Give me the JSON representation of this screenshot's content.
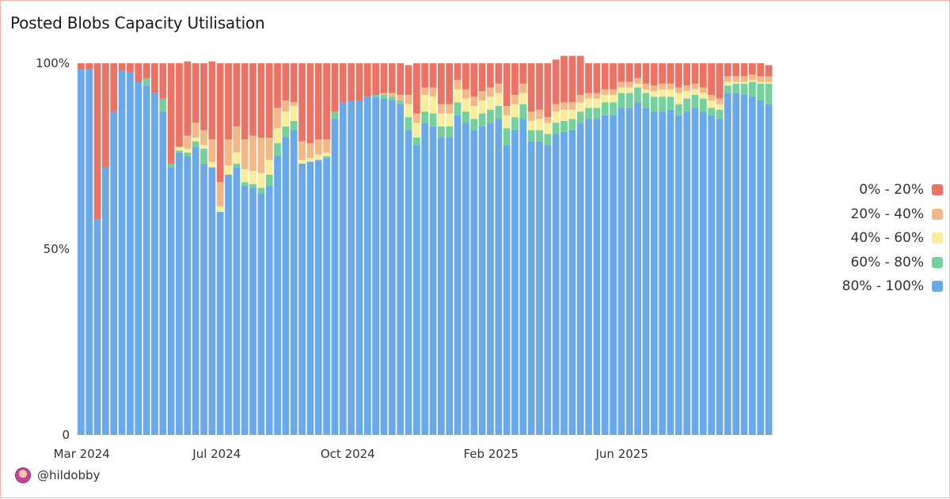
{
  "title": "Posted Blobs Capacity Utilisation",
  "footer": {
    "handle": "@hildobby",
    "avatar_icon": "avatar-icon"
  },
  "legend": [
    {
      "label": "0% - 20%",
      "color": "#ec7263"
    },
    {
      "label": "20% - 40%",
      "color": "#f4b886"
    },
    {
      "label": "40% - 60%",
      "color": "#f8ee99"
    },
    {
      "label": "60% - 80%",
      "color": "#74d19c"
    },
    {
      "label": "80% - 100%",
      "color": "#69a8ea"
    }
  ],
  "chart_data": {
    "type": "bar",
    "stacked": true,
    "title": "Posted Blobs Capacity Utilisation",
    "x_tick_labels": [
      "Mar 2024",
      "Jul 2024",
      "Oct 2024",
      "Feb 2025",
      "Jun 2025"
    ],
    "y_tick_labels": [
      "0",
      "50%",
      "100%"
    ],
    "ylim": [
      0,
      100
    ],
    "grid": false,
    "legend_position": "right",
    "series_order_bottom_to_top": [
      "80% - 100%",
      "60% - 80%",
      "40% - 60%",
      "20% - 40%",
      "0% - 20%"
    ],
    "series": [
      {
        "name": "80% - 100%",
        "color": "#69a8ea",
        "values": [
          98.5,
          98.5,
          58,
          72,
          87,
          98,
          97.5,
          95,
          94,
          92,
          87,
          72,
          76,
          75,
          77.5,
          73,
          72,
          60,
          70,
          72,
          67,
          66.5,
          65,
          67,
          75,
          80,
          82,
          73,
          73.5,
          74,
          74.5,
          85,
          89.5,
          90,
          90,
          91,
          91,
          90.5,
          90,
          89,
          82,
          78,
          84,
          83,
          80,
          80,
          86,
          84,
          82,
          83,
          84,
          85,
          78,
          82,
          85,
          79,
          79,
          78,
          81,
          81.5,
          82,
          84,
          85,
          85,
          86,
          86,
          88,
          88,
          89.5,
          88,
          87,
          87,
          87.5,
          86,
          87,
          88,
          87,
          86,
          85,
          92,
          92,
          91.5,
          91,
          90,
          89
        ]
      },
      {
        "name": "60% - 80%",
        "color": "#74d19c",
        "values": [
          0,
          0,
          0,
          0,
          0,
          0,
          0,
          0,
          2,
          0,
          3.5,
          1,
          0.5,
          1,
          1.5,
          4,
          0,
          0,
          0,
          1,
          1,
          1,
          1.5,
          3,
          3.5,
          3,
          2.5,
          0,
          0,
          0,
          0.5,
          2,
          0,
          0,
          0,
          0,
          0.5,
          1,
          1,
          1,
          3.5,
          2,
          3,
          3.5,
          3,
          3,
          3.5,
          3,
          3,
          3.5,
          3.5,
          3.5,
          4.5,
          3.5,
          4,
          3,
          3,
          3,
          3,
          3,
          3,
          3,
          3,
          3,
          3.5,
          3.5,
          4,
          4,
          4,
          4,
          4,
          4,
          3.5,
          3,
          3.5,
          3.5,
          3.5,
          2,
          2.5,
          2,
          2.5,
          3,
          4,
          4.5,
          5.5,
          6
        ]
      },
      {
        "name": "40% - 60%",
        "color": "#f8ee99",
        "values": [
          0,
          0,
          0,
          0,
          0,
          0,
          0,
          0,
          0,
          0,
          0,
          0,
          1,
          1,
          1,
          1,
          1.5,
          1.5,
          2.5,
          3,
          3.5,
          3.5,
          4,
          4,
          4,
          4,
          4,
          1,
          1,
          1.5,
          1,
          0,
          0,
          0,
          0,
          0,
          0,
          0,
          0,
          0,
          3.5,
          4,
          4.5,
          4.5,
          3.5,
          3.5,
          3.5,
          3.5,
          3.5,
          3.5,
          3.5,
          3.5,
          3.5,
          3.5,
          3,
          2.5,
          3,
          3,
          3,
          3,
          2.5,
          2.5,
          2.5,
          2.5,
          2,
          2,
          1.5,
          1.5,
          1,
          1,
          1.5,
          2,
          2,
          3,
          2,
          1.5,
          1.5,
          2,
          1.5,
          1,
          0.5,
          0.5,
          0.5,
          0.5,
          0.5
        ]
      },
      {
        "name": "20% - 40%",
        "color": "#f4b886",
        "values": [
          0,
          0,
          0,
          0,
          0,
          0,
          0,
          0,
          0,
          0,
          0,
          0,
          0,
          3.5,
          4,
          4,
          6,
          6.5,
          7,
          7,
          8,
          9.5,
          9.5,
          6,
          5.5,
          3,
          1,
          5,
          4,
          4,
          3.5,
          0,
          0,
          0,
          0,
          0,
          0,
          0.5,
          1,
          1.5,
          2.5,
          2.5,
          2,
          2.5,
          2.5,
          2.5,
          2.5,
          2.5,
          2.5,
          2.5,
          2.5,
          2.5,
          2.5,
          2.5,
          2.5,
          2.5,
          2.5,
          1.5,
          2,
          2,
          2,
          2,
          1.5,
          1.5,
          1.5,
          1.5,
          1.5,
          1.5,
          1.5,
          1.5,
          1.5,
          1.5,
          1.5,
          1.5,
          1.5,
          1.5,
          1.5,
          1.5,
          1.5,
          1.5,
          1.5,
          1.5,
          1.5,
          1.5,
          1.5
        ]
      },
      {
        "name": "0% - 20%",
        "color": "#ec7263",
        "values": [
          1.5,
          1.5,
          42,
          28,
          13,
          2,
          2.5,
          5,
          4,
          8,
          9.5,
          27,
          22.5,
          20,
          16,
          18,
          21,
          32,
          20.5,
          17,
          20.5,
          19.5,
          20,
          20,
          12,
          10,
          10.5,
          21,
          21.5,
          20.5,
          20.5,
          13,
          10.5,
          10,
          10,
          9,
          8.5,
          8,
          8,
          8.5,
          8,
          13.5,
          6.5,
          6.5,
          11,
          11,
          4.5,
          7,
          9,
          7.5,
          6.5,
          5.5,
          11.5,
          8.5,
          5.5,
          13,
          12.5,
          14.5,
          12,
          12.5,
          12.5,
          10.5,
          8,
          8,
          7,
          7,
          5,
          5,
          4,
          5.5,
          6,
          5.5,
          5.5,
          6.5,
          6,
          5.5,
          6.5,
          8.5,
          9.5,
          3.5,
          3.5,
          3.5,
          3,
          3.5,
          3
        ]
      }
    ]
  }
}
